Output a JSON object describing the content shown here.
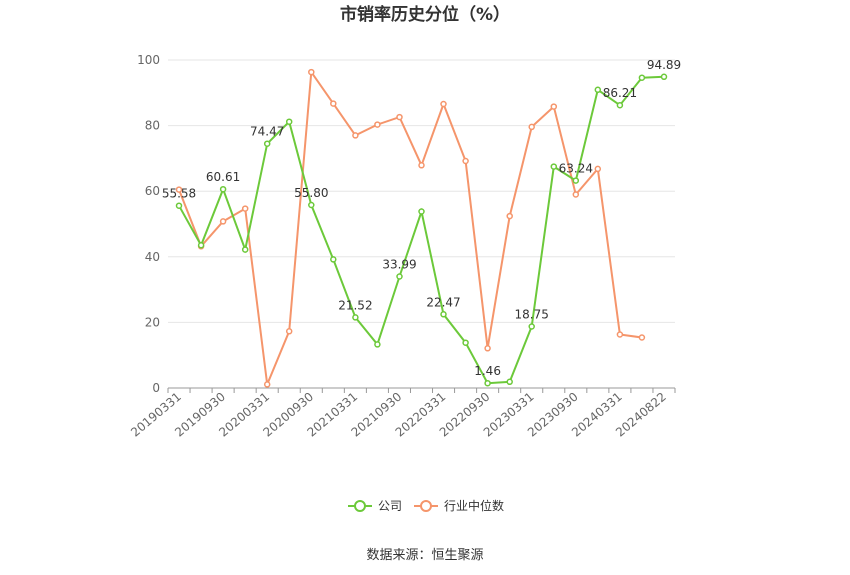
{
  "chart_data": {
    "type": "line",
    "title": "市销率历史分位（%）",
    "source": "数据来源：恒生聚源",
    "ylim": [
      0,
      100
    ],
    "yticks": [
      "0",
      "20",
      "40",
      "60",
      "80",
      "100"
    ],
    "grid": true,
    "legend_position": "bottom",
    "x_labels": [
      "20190331",
      "20190930",
      "20200331",
      "20200930",
      "20210331",
      "20210930",
      "20220331",
      "20220930",
      "20230331",
      "20230930",
      "20240331",
      "20240822"
    ],
    "series": [
      {
        "name": "公司",
        "color": "#6cc93a",
        "values": [
          55.58,
          43.5,
          60.61,
          42.2,
          74.47,
          81.2,
          55.8,
          39.2,
          21.52,
          13.3,
          33.99,
          53.8,
          22.47,
          13.8,
          1.46,
          1.9,
          18.75,
          67.5,
          63.24,
          90.9,
          86.21,
          94.6,
          94.89
        ],
        "labels": [
          "55.58",
          "",
          "60.61",
          "",
          "74.47",
          "",
          "55.80",
          "",
          "21.52",
          "",
          "33.99",
          "",
          "22.47",
          "",
          "1.46",
          "",
          "18.75",
          "",
          "63.24",
          "",
          "86.21",
          "",
          "94.89"
        ]
      },
      {
        "name": "行业中位数",
        "color": "#f5956b",
        "values": [
          60.5,
          43.2,
          50.8,
          54.7,
          1.1,
          17.3,
          96.3,
          86.7,
          77.0,
          80.3,
          82.6,
          67.9,
          86.6,
          69.2,
          12.1,
          52.4,
          79.6,
          85.8,
          59.0,
          66.8,
          16.3,
          15.4,
          null
        ]
      }
    ]
  }
}
